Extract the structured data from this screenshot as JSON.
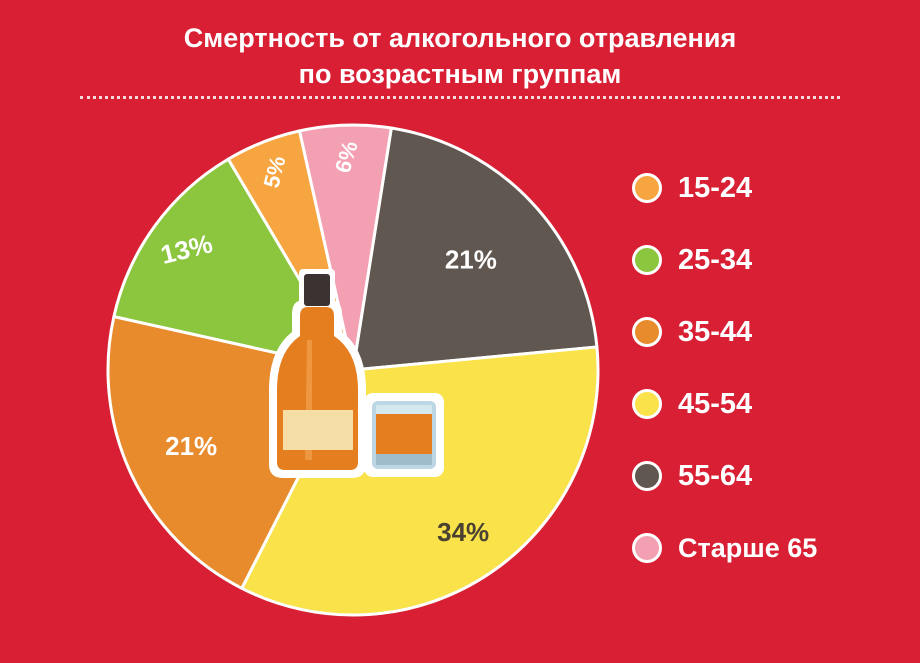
{
  "title": {
    "line1": "Смертность от алкогольного отравления",
    "line2": "по возрастным группам"
  },
  "colors": {
    "background": "#d81f33",
    "text": "#ffffff"
  },
  "chart_data": {
    "type": "pie",
    "title": "Смертность от алкогольного отравления по возрастным группам",
    "legend_position": "right",
    "slices": [
      {
        "label": "55-64",
        "value": 21,
        "display": "21%",
        "color": "#5f5750"
      },
      {
        "label": "45-54",
        "value": 34,
        "display": "34%",
        "color": "#f9e24a"
      },
      {
        "label": "35-44",
        "value": 21,
        "display": "21%",
        "color": "#e88b2c"
      },
      {
        "label": "25-34",
        "value": 13,
        "display": "13%",
        "color": "#8cc63f"
      },
      {
        "label": "15-24",
        "value": 5,
        "display": "5%",
        "color": "#f7a540"
      },
      {
        "label": "Старше 65",
        "value": 6,
        "display": "6%",
        "color": "#f4a0b3"
      }
    ]
  },
  "legend": [
    {
      "label": "15-24",
      "color": "#f7a540"
    },
    {
      "label": "25-34",
      "color": "#8cc63f"
    },
    {
      "label": "35-44",
      "color": "#e88b2c"
    },
    {
      "label": "45-54",
      "color": "#f9e24a"
    },
    {
      "label": "55-64",
      "color": "#5f5750"
    },
    {
      "label": "Старше 65",
      "color": "#f4a0b3"
    }
  ],
  "illustration": {
    "icons": [
      "bottle-icon",
      "glass-icon"
    ]
  }
}
